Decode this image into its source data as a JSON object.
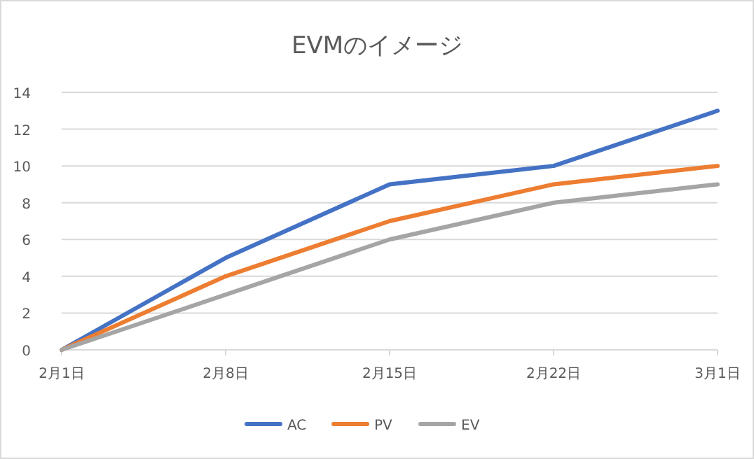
{
  "chart_data": {
    "type": "line",
    "title": "EVMのイメージ",
    "x": [
      "--02-01",
      "--02-08",
      "--02-15",
      "--02-22",
      "--03-01"
    ],
    "series": [
      {
        "name": "AC",
        "color": "#4472c4",
        "values": [
          0,
          5,
          9,
          10,
          13
        ]
      },
      {
        "name": "PV",
        "color": "#ed7d31",
        "values": [
          0,
          4,
          7,
          9,
          10
        ]
      },
      {
        "name": "EV",
        "color": "#a5a5a5",
        "values": [
          0,
          3,
          6,
          8,
          9
        ]
      }
    ],
    "xlim": [
      "--02-01",
      "--03-01"
    ],
    "xticks": [
      {
        "value": "--02-01",
        "label": "2月1日"
      },
      {
        "value": "--02-08",
        "label": "2月8日"
      },
      {
        "value": "--02-15",
        "label": "2月15日"
      },
      {
        "value": "--02-22",
        "label": "2月22日"
      },
      {
        "value": "--03-01",
        "label": "3月1日"
      }
    ],
    "ylim": [
      0,
      14
    ],
    "yticks": [
      0,
      2,
      4,
      6,
      8,
      10,
      12,
      14
    ],
    "grid": "y",
    "legend": "bottom",
    "marker": "none",
    "line_style": "solid"
  }
}
